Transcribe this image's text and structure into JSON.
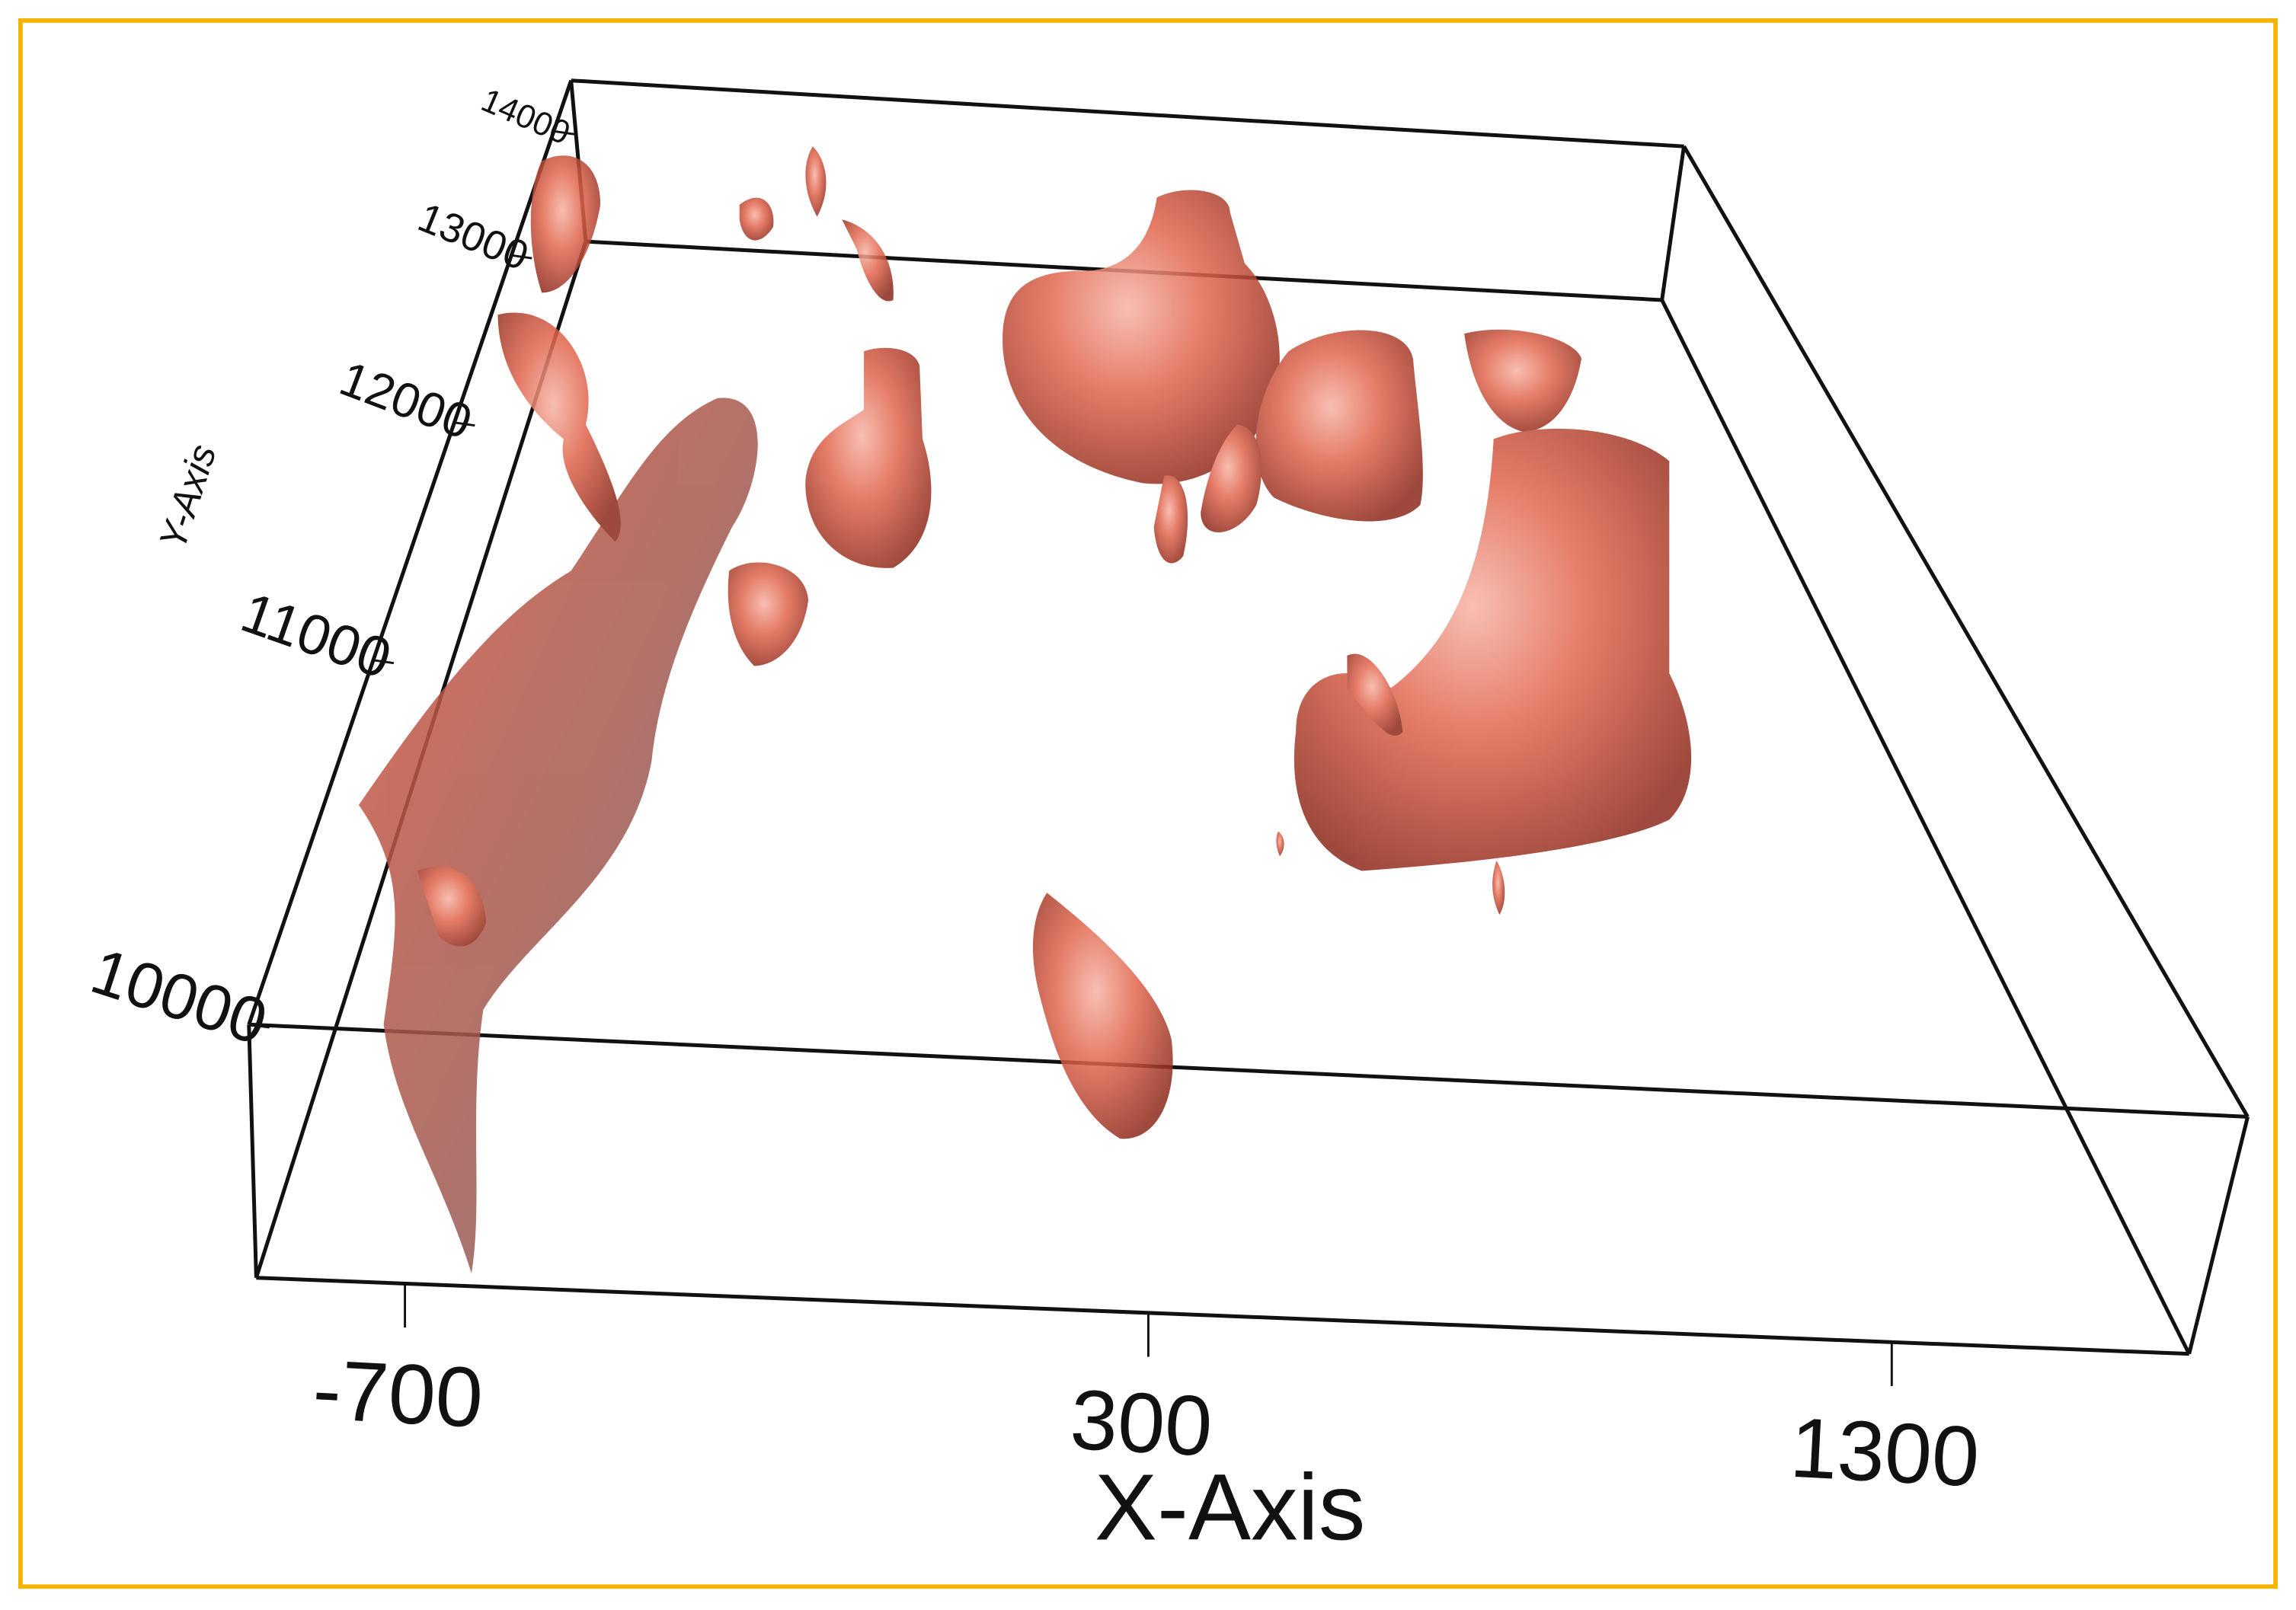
{
  "chart_data": {
    "type": "surface3d",
    "xlabel": "X-Axis",
    "ylabel": "Y-Axis",
    "xlim": [
      -900,
      1700
    ],
    "xticks": [
      -700,
      300,
      1300
    ],
    "ylim": [
      10000,
      14500
    ],
    "yticks": [
      10000,
      11000,
      12000,
      13000,
      14000
    ],
    "color": "#d9503a"
  }
}
